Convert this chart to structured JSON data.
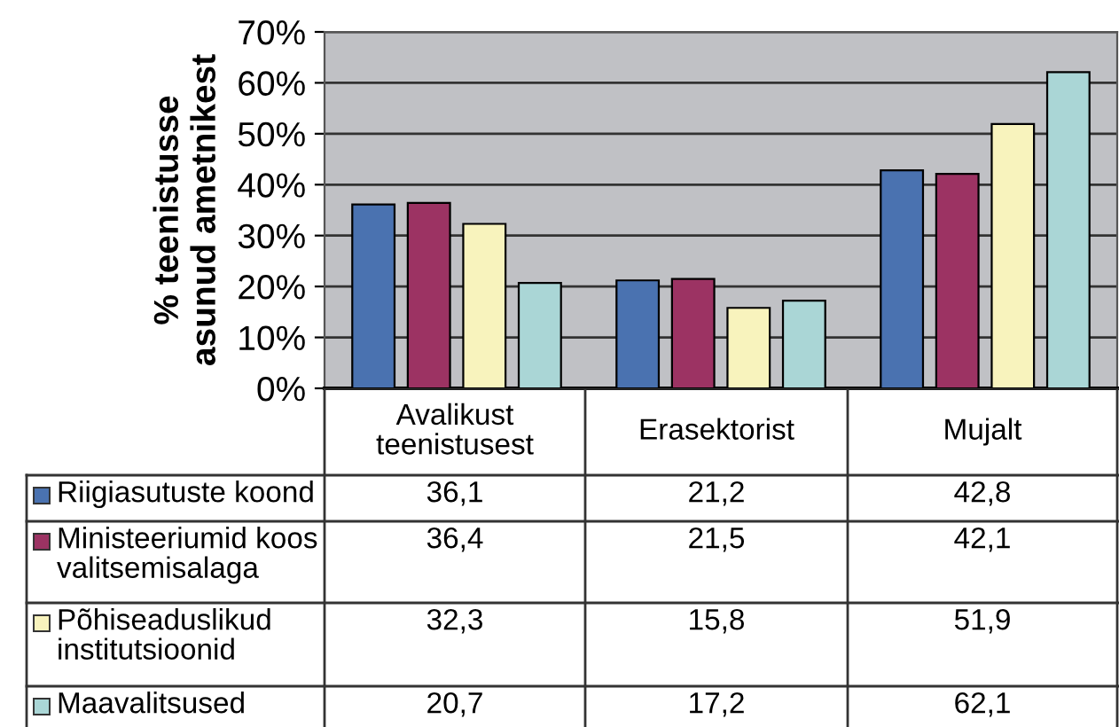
{
  "chart_data": {
    "type": "bar",
    "ylabel": "% teenistusse\nasunud ametnikest",
    "categories": [
      "Avalikust\nteenistusest",
      "Erasektorist",
      "Mujalt"
    ],
    "series": [
      {
        "name": "Riigiasutuste koond",
        "color": "#4a72b0",
        "values": [
          36.1,
          21.2,
          42.8
        ],
        "value_labels": [
          "36,1",
          "21,2",
          "42,8"
        ]
      },
      {
        "name": "Ministeeriumid koos\nvalitsemisalaga",
        "color": "#9c3363",
        "values": [
          36.4,
          21.5,
          42.1
        ],
        "value_labels": [
          "36,4",
          "21,5",
          "42,1"
        ]
      },
      {
        "name": "Põhiseaduslikud\ninstitutsioonid",
        "color": "#f8f3bd",
        "values": [
          32.3,
          15.8,
          51.9
        ],
        "value_labels": [
          "32,3",
          "15,8",
          "51,9"
        ]
      },
      {
        "name": "Maavalitsused",
        "color": "#aad6d6",
        "values": [
          20.7,
          17.2,
          62.1
        ],
        "value_labels": [
          "20,7",
          "17,2",
          "62,1"
        ]
      }
    ],
    "ylim": [
      0,
      70
    ],
    "yticks": [
      {
        "value": 0,
        "label": "0%"
      },
      {
        "value": 10,
        "label": "10%"
      },
      {
        "value": 20,
        "label": "20%"
      },
      {
        "value": 30,
        "label": "30%"
      },
      {
        "value": 40,
        "label": "40%"
      },
      {
        "value": 50,
        "label": "50%"
      },
      {
        "value": 60,
        "label": "60%"
      },
      {
        "value": 70,
        "label": "70%"
      }
    ],
    "grid": "y",
    "legend": "bottom",
    "tick_labels": "y"
  }
}
